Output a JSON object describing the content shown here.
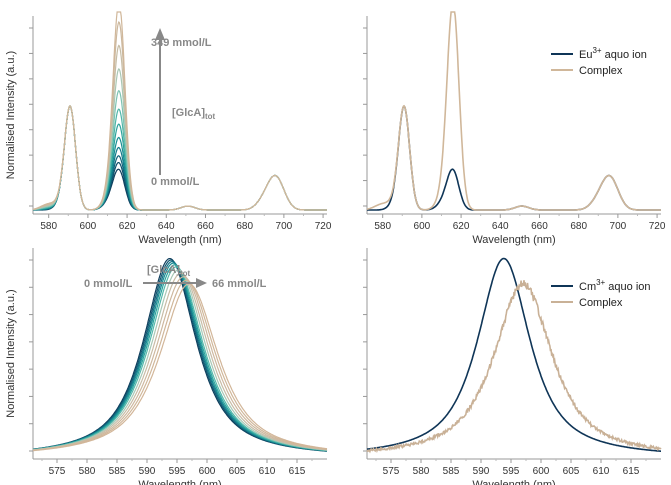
{
  "chart_data": [
    {
      "id": "tl",
      "type": "line",
      "xlabel": "Wavelength (nm)",
      "ylabel": "Normalised Intensity (a.u.)",
      "xlim": [
        572,
        722
      ],
      "ylim": [
        0,
        1
      ],
      "xticks": [
        580,
        600,
        620,
        640,
        660,
        680,
        700,
        720
      ],
      "grid": false,
      "model": "eu",
      "series": [
        {
          "ratio": 0.0,
          "color": "#0e3d5c"
        },
        {
          "ratio": 0.04,
          "color": "#0e4f6b"
        },
        {
          "ratio": 0.08,
          "color": "#0f637a"
        },
        {
          "ratio": 0.13,
          "color": "#117a89"
        },
        {
          "ratio": 0.19,
          "color": "#178f93"
        },
        {
          "ratio": 0.27,
          "color": "#2ea39c"
        },
        {
          "ratio": 0.36,
          "color": "#4fb6a8"
        },
        {
          "ratio": 0.47,
          "color": "#7dc3b2"
        },
        {
          "ratio": 0.6,
          "color": "#a9c7b4"
        },
        {
          "ratio": 0.74,
          "color": "#c5bca5"
        },
        {
          "ratio": 0.88,
          "color": "#ccb89e"
        },
        {
          "ratio": 1.0,
          "color": "#d0b79a"
        }
      ],
      "annotations": {
        "top_label": "349 mmol/L",
        "mid_label_main": "[GlcA]",
        "mid_label_sub": "tot",
        "bottom_label": "0 mmol/L"
      }
    },
    {
      "id": "tr",
      "type": "line",
      "xlabel": "Wavelength (nm)",
      "ylabel": "",
      "xlim": [
        572,
        722
      ],
      "ylim": [
        0,
        1
      ],
      "xticks": [
        580,
        600,
        620,
        640,
        660,
        680,
        700,
        720
      ],
      "grid": false,
      "model": "eu",
      "series": [
        {
          "name_main": "Eu",
          "name_sup": "3+",
          "name_rest": " aquo ion",
          "ratio": 0.0,
          "color": "#0f3557"
        },
        {
          "name_main": "Complex",
          "name_sup": "",
          "name_rest": "",
          "ratio": 1.0,
          "color": "#d0b79a"
        }
      ],
      "legend": "top-right"
    },
    {
      "id": "bl",
      "type": "line",
      "xlabel": "Wavelength (nm)",
      "ylabel": "Normalised Intensity (a.u.)",
      "xlim": [
        571,
        620
      ],
      "ylim": [
        0,
        1
      ],
      "xticks": [
        575,
        580,
        585,
        590,
        595,
        600,
        605,
        610,
        615
      ],
      "grid": false,
      "model": "cm",
      "series": [
        {
          "ratio": 0.0,
          "color": "#0e3d5c"
        },
        {
          "ratio": 0.06,
          "color": "#0f5670"
        },
        {
          "ratio": 0.12,
          "color": "#137084"
        },
        {
          "ratio": 0.18,
          "color": "#178b92"
        },
        {
          "ratio": 0.25,
          "color": "#2aa39e"
        },
        {
          "ratio": 0.33,
          "color": "#55b9ab"
        },
        {
          "ratio": 0.45,
          "color": "#a8c8b6"
        },
        {
          "ratio": 0.58,
          "color": "#c8bca6"
        },
        {
          "ratio": 0.72,
          "color": "#ceb89f"
        },
        {
          "ratio": 0.86,
          "color": "#d0b79a"
        },
        {
          "ratio": 1.0,
          "color": "#d2b699"
        }
      ],
      "annotations": {
        "left_label": "0 mmol/L",
        "right_label": "66 mmol/L",
        "mid_label_main": "[GlcA]",
        "mid_label_sub": "tot"
      }
    },
    {
      "id": "br",
      "type": "line",
      "xlabel": "Wavelength (nm)",
      "ylabel": "",
      "xlim": [
        571,
        620
      ],
      "ylim": [
        0,
        1
      ],
      "xticks": [
        575,
        580,
        585,
        590,
        595,
        600,
        605,
        610,
        615
      ],
      "grid": false,
      "model": "cm",
      "series": [
        {
          "name_main": "Cm",
          "name_sup": "3+",
          "name_rest": " aquo ion",
          "ratio": 0.0,
          "color": "#0f3557"
        },
        {
          "name_main": "Complex",
          "name_sup": "",
          "name_rest": "",
          "ratio": 1.0,
          "color": "#c9b197",
          "noise": true
        }
      ],
      "legend": "top-right"
    }
  ]
}
